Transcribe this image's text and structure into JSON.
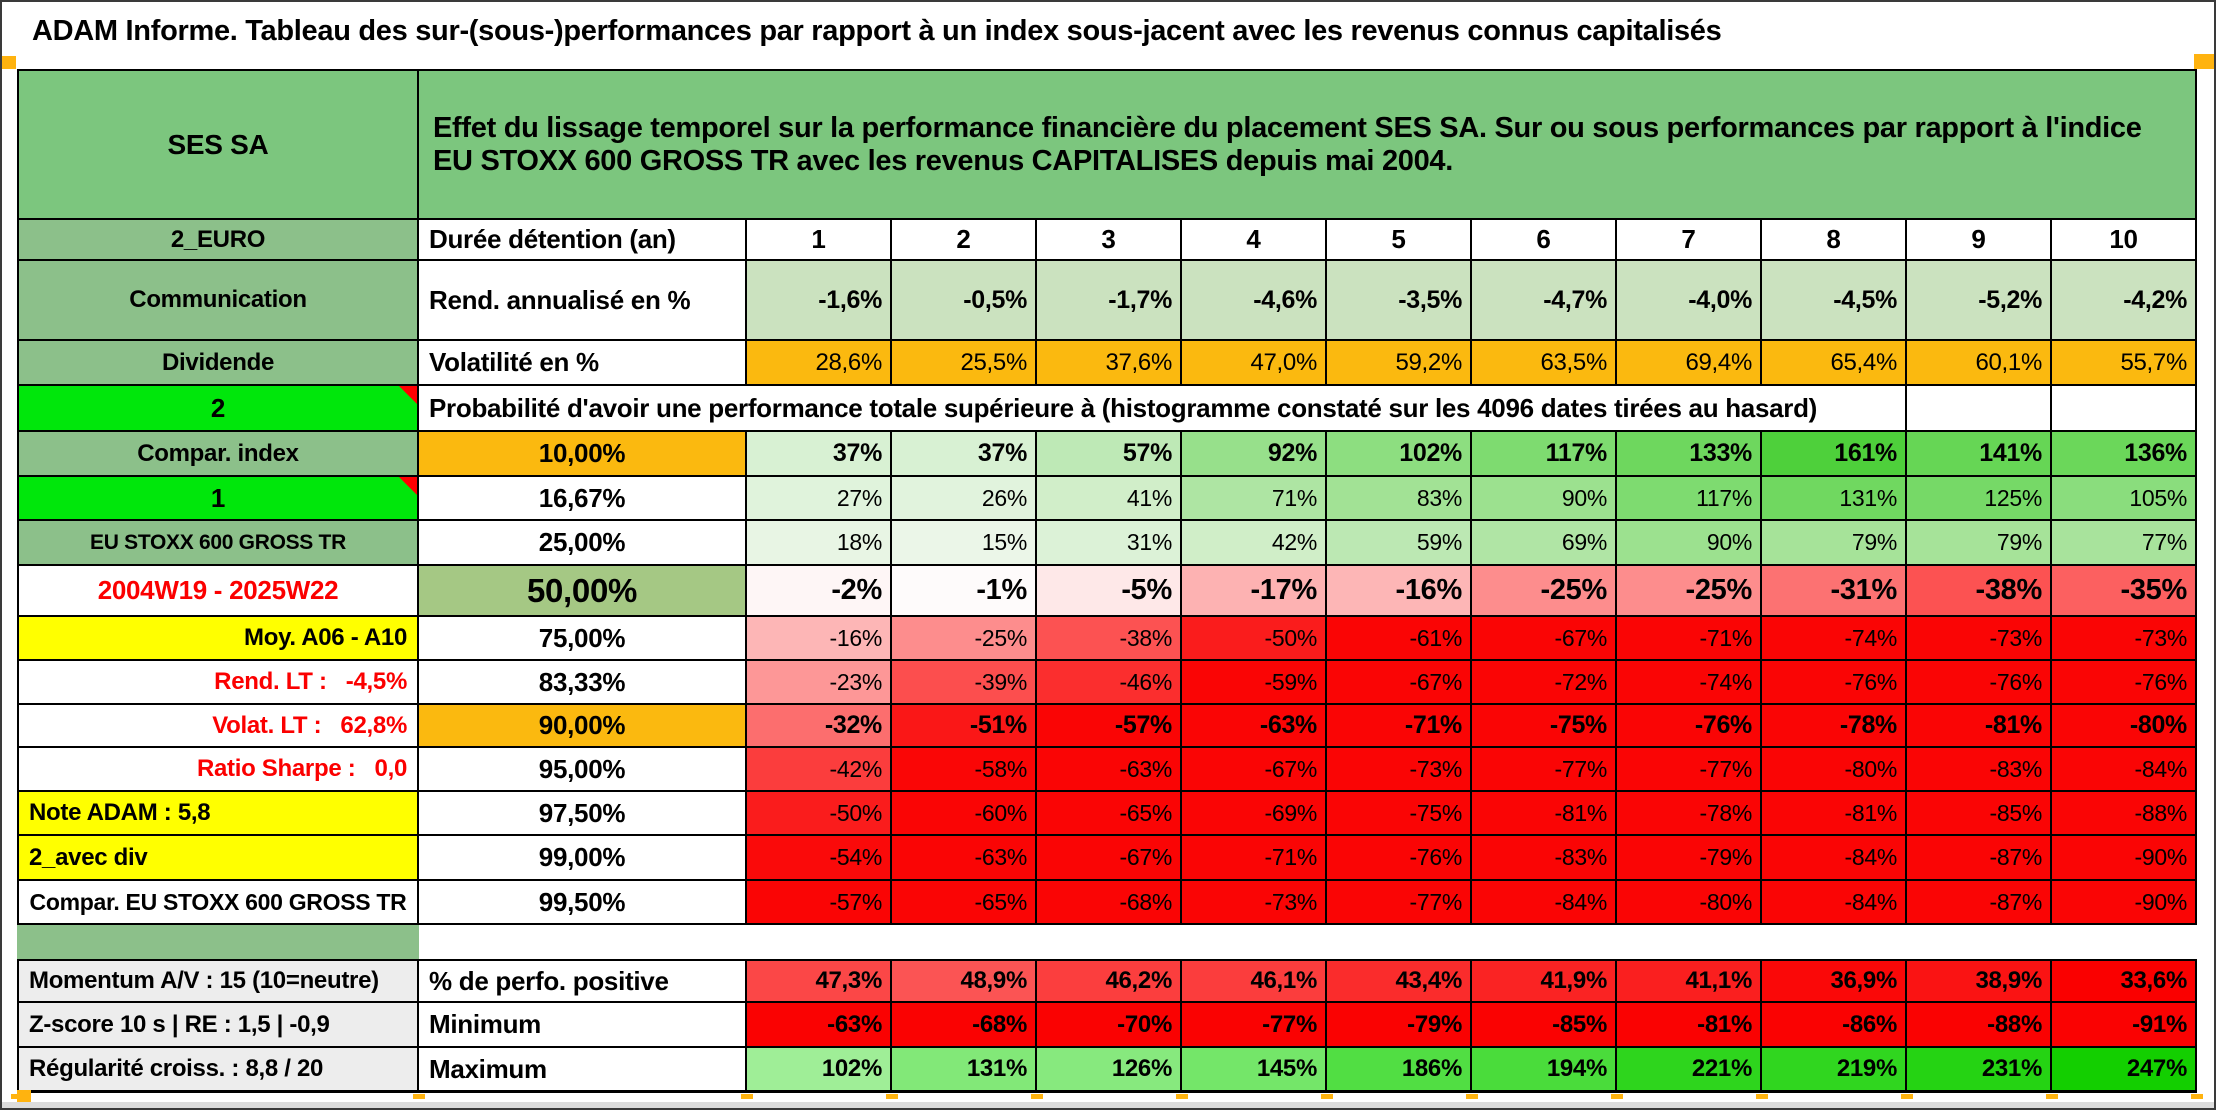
{
  "colors": {
    "title_green": "#7CC67E",
    "label_green": "#8CC08A",
    "bright_green": "#00E70B",
    "orange": "#FBB90F",
    "light_green": "#CBE2BF",
    "olive": "#A5C884",
    "yellow": "#FFFF00",
    "gray_label": "#EDEDED",
    "red_text": "#FB0000",
    "full_red": "#FA0505",
    "frame_orange": "#FFB30F"
  },
  "title": "ADAM Informe. Tableau des sur-(sous-)performances par rapport à un index sous-jacent avec les revenus connus capitalisés",
  "header": {
    "security": "SES SA",
    "description": "Effet du lissage temporel sur la performance financière du placement SES SA. Sur ou sous performances par rapport à l'indice EU STOXX 600 GROSS TR avec les revenus CAPITALISES depuis mai 2004."
  },
  "duration_row": {
    "label": "2_EURO",
    "name": "Durée détention (an)",
    "columns": [
      "1",
      "2",
      "3",
      "4",
      "5",
      "6",
      "7",
      "8",
      "9",
      "10"
    ]
  },
  "return_row": {
    "label": "Communication",
    "name": "Rend. annualisé en %",
    "values": [
      "-1,6%",
      "-0,5%",
      "-1,7%",
      "-4,6%",
      "-3,5%",
      "-4,7%",
      "-4,0%",
      "-4,5%",
      "-5,2%",
      "-4,2%"
    ]
  },
  "volatility_row": {
    "label": "Dividende",
    "name": "Volatilité en %",
    "values": [
      "28,6%",
      "25,5%",
      "37,6%",
      "47,0%",
      "59,2%",
      "63,5%",
      "69,4%",
      "65,4%",
      "60,1%",
      "55,7%"
    ]
  },
  "probability_note_row": {
    "label": "2",
    "note": "Probabilité d'avoir une performance totale supérieure à (histogramme constaté sur les 4096 dates tirées au hasard)"
  },
  "probability_rows": [
    {
      "label": "Compar. index",
      "label_bg": "#8CC08A",
      "label_color": "#000000",
      "marker": false,
      "pct": "10,00%",
      "pct_bg": "#FBB90F",
      "row_bold": true,
      "values": [
        "37%",
        "37%",
        "57%",
        "92%",
        "102%",
        "117%",
        "133%",
        "161%",
        "141%",
        "136%"
      ],
      "bgs": [
        "#D8F1D3",
        "#D8F1D3",
        "#BEE9B6",
        "#97E08B",
        "#8DDE80",
        "#7EDB70",
        "#6ED75E",
        "#4ED03B",
        "#66D655",
        "#6BD75A"
      ]
    },
    {
      "label": "1",
      "label_bg": "#00E70B",
      "label_color": "#000000",
      "marker": true,
      "pct": "16,67%",
      "pct_bg": "#FFFFFF",
      "row_bold": false,
      "values": [
        "27%",
        "26%",
        "41%",
        "71%",
        "83%",
        "90%",
        "117%",
        "131%",
        "125%",
        "105%"
      ],
      "bgs": [
        "#E0F3DC",
        "#E1F3DD",
        "#D1EEC9",
        "#AEE5A3",
        "#A2E295",
        "#9CE18F",
        "#7EDB70",
        "#70D860",
        "#76D967",
        "#8ADD7D"
      ]
    },
    {
      "label": "EU STOXX 600 GROSS TR",
      "label_bg": "#8CC08A",
      "label_color": "#000000",
      "marker": false,
      "pct": "25,00%",
      "pct_bg": "#FFFFFF",
      "row_bold": false,
      "values": [
        "18%",
        "15%",
        "31%",
        "42%",
        "59%",
        "69%",
        "90%",
        "79%",
        "79%",
        "77%"
      ],
      "bgs": [
        "#E8F5E4",
        "#EBF6E8",
        "#DCF2D7",
        "#D0EEC8",
        "#BCE8B3",
        "#B0E5A5",
        "#9CE18F",
        "#A6E399",
        "#A6E399",
        "#A8E39C"
      ]
    },
    {
      "label": "2004W19 - 2025W22",
      "label_bg": "#FFFFFF",
      "label_color": "#FB0000",
      "marker": false,
      "pct": "50,00%",
      "pct_bg": "#A5C884",
      "row_bold": true,
      "values": [
        "-2%",
        "-1%",
        "-5%",
        "-17%",
        "-16%",
        "-25%",
        "-25%",
        "-31%",
        "-38%",
        "-35%"
      ],
      "bgs": [
        "#FEF6F6",
        "#FEFBFB",
        "#FEE8E8",
        "#FDB2B2",
        "#FDB6B6",
        "#FD8D8D",
        "#FD8D8D",
        "#FC7272",
        "#FC5252",
        "#FC6060"
      ]
    },
    {
      "label": "Moy. A06 - A10",
      "label_bg": "#FFFF00",
      "label_color": "#000000",
      "marker": false,
      "pct": "75,00%",
      "pct_bg": "#FFFFFF",
      "row_bold": false,
      "values": [
        "-16%",
        "-25%",
        "-38%",
        "-50%",
        "-61%",
        "-67%",
        "-71%",
        "-74%",
        "-73%",
        "-73%"
      ],
      "bgs": [
        "#FDB6B6",
        "#FD8D8D",
        "#FC5252",
        "#FA1C1C",
        "#FA0505",
        "#FA0505",
        "#FA0505",
        "#FA0505",
        "#FA0505",
        "#FA0505"
      ]
    },
    {
      "label": "Rend. LT :   -4,5%",
      "label_bg": "#FFFFFF",
      "label_color": "#FB0000",
      "marker": false,
      "pct": "83,33%",
      "pct_bg": "#FFFFFF",
      "row_bold": false,
      "values": [
        "-23%",
        "-39%",
        "-46%",
        "-59%",
        "-67%",
        "-72%",
        "-74%",
        "-76%",
        "-76%",
        "-76%"
      ],
      "bgs": [
        "#FD9797",
        "#FC4E4E",
        "#FB2E2E",
        "#FA0505",
        "#FA0505",
        "#FA0505",
        "#FA0505",
        "#FA0505",
        "#FA0505",
        "#FA0505"
      ]
    },
    {
      "label": "Volat. LT :   62,8%",
      "label_bg": "#FFFFFF",
      "label_color": "#FB0000",
      "marker": false,
      "pct": "90,00%",
      "pct_bg": "#FBB90F",
      "row_bold": true,
      "values": [
        "-32%",
        "-51%",
        "-57%",
        "-63%",
        "-71%",
        "-75%",
        "-76%",
        "-78%",
        "-81%",
        "-80%"
      ],
      "bgs": [
        "#FC6E6E",
        "#FA1717",
        "#FA0505",
        "#FA0505",
        "#FA0505",
        "#FA0505",
        "#FA0505",
        "#FA0505",
        "#FA0505",
        "#FA0505"
      ]
    },
    {
      "label": "Ratio Sharpe :   0,0",
      "label_bg": "#FFFFFF",
      "label_color": "#FB0000",
      "marker": false,
      "pct": "95,00%",
      "pct_bg": "#FFFFFF",
      "row_bold": false,
      "values": [
        "-42%",
        "-58%",
        "-63%",
        "-67%",
        "-73%",
        "-77%",
        "-77%",
        "-80%",
        "-83%",
        "-84%"
      ],
      "bgs": [
        "#FB3D3D",
        "#FA0606",
        "#FA0505",
        "#FA0505",
        "#FA0505",
        "#FA0505",
        "#FA0505",
        "#FA0505",
        "#FA0505",
        "#FA0505"
      ]
    },
    {
      "label": "Note ADAM : 5,8",
      "label_bg": "#FFFF00",
      "label_color": "#000000",
      "marker": false,
      "pct": "97,50%",
      "pct_bg": "#FFFFFF",
      "row_bold": false,
      "values": [
        "-50%",
        "-60%",
        "-65%",
        "-69%",
        "-75%",
        "-81%",
        "-78%",
        "-81%",
        "-85%",
        "-88%"
      ],
      "bgs": [
        "#FA1C1C",
        "#FA0505",
        "#FA0505",
        "#FA0505",
        "#FA0505",
        "#FA0505",
        "#FA0505",
        "#FA0505",
        "#FA0505",
        "#FA0505"
      ]
    },
    {
      "label": "2_avec div",
      "label_bg": "#FFFF00",
      "label_color": "#000000",
      "marker": false,
      "pct": "99,00%",
      "pct_bg": "#FFFFFF",
      "row_bold": false,
      "values": [
        "-54%",
        "-63%",
        "-67%",
        "-71%",
        "-76%",
        "-83%",
        "-79%",
        "-84%",
        "-87%",
        "-90%"
      ],
      "bgs": [
        "#FA0A0A",
        "#FA0505",
        "#FA0505",
        "#FA0505",
        "#FA0505",
        "#FA0505",
        "#FA0505",
        "#FA0505",
        "#FA0505",
        "#FA0505"
      ]
    },
    {
      "label": "Compar. EU STOXX 600 GROSS TR",
      "label_bg": "#FFFFFF",
      "label_color": "#000000",
      "marker": false,
      "pct": "99,50%",
      "pct_bg": "#FFFFFF",
      "row_bold": false,
      "values": [
        "-57%",
        "-65%",
        "-68%",
        "-73%",
        "-77%",
        "-84%",
        "-80%",
        "-84%",
        "-87%",
        "-90%"
      ],
      "bgs": [
        "#FA0505",
        "#FA0505",
        "#FA0505",
        "#FA0505",
        "#FA0505",
        "#FA0505",
        "#FA0505",
        "#FA0505",
        "#FA0505",
        "#FA0505"
      ]
    }
  ],
  "bottom_rows": [
    {
      "label": "Momentum A/V : 15 (10=neutre)",
      "metric": "% de perfo. positive",
      "values": [
        "47,3%",
        "48,9%",
        "46,2%",
        "46,1%",
        "43,4%",
        "41,9%",
        "41,1%",
        "36,9%",
        "38,9%",
        "33,6%"
      ],
      "bgs": [
        "#FB4747",
        "#FB5454",
        "#FB3E3E",
        "#FB3D3D",
        "#FA2C2C",
        "#FA2323",
        "#FA1F1F",
        "#FA0808",
        "#FA1313",
        "#FA0000"
      ]
    },
    {
      "label": "Z-score 10 s | RE : 1,5 | -0,9",
      "metric": "Minimum",
      "values": [
        "-63%",
        "-68%",
        "-70%",
        "-77%",
        "-79%",
        "-85%",
        "-81%",
        "-86%",
        "-88%",
        "-91%"
      ],
      "bgs": [
        "#FA0202",
        "#FA0202",
        "#FA0202",
        "#FA0202",
        "#FA0202",
        "#FA0202",
        "#FA0202",
        "#FA0202",
        "#FA0202",
        "#FA0202"
      ]
    },
    {
      "label": "Régularité croiss. : 8,8 / 20",
      "metric": "Maximum",
      "values": [
        "102%",
        "131%",
        "126%",
        "145%",
        "186%",
        "194%",
        "221%",
        "219%",
        "231%",
        "247%"
      ],
      "bgs": [
        "#9FEE97",
        "#82E878",
        "#87E97E",
        "#74E669",
        "#51DE43",
        "#4ADC3B",
        "#2ED51D",
        "#30D61F",
        "#25D313",
        "#13CF00"
      ]
    }
  ]
}
